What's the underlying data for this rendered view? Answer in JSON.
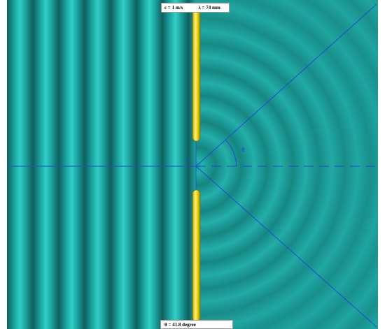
{
  "header": {
    "speed_label": "c = 1 m/s",
    "wavelength_label": "λ = 74 mm"
  },
  "footer": {
    "angle_label": "θ = 41.8 degree"
  },
  "markers": {
    "slit_width_symbol": "a",
    "angle_symbol": "θ"
  },
  "colors": {
    "wave_teal": "#1aa5a0",
    "barrier_yellow": "#f2dc1c",
    "guide_blue": "#1e4ed0"
  }
}
